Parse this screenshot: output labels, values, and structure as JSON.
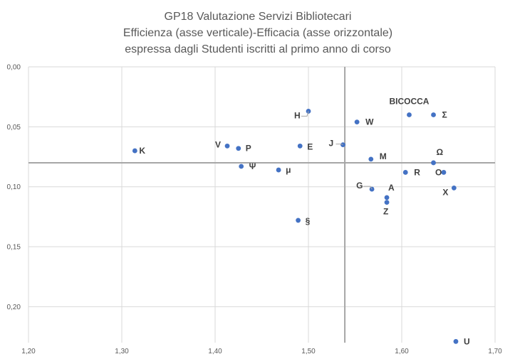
{
  "chart_data": {
    "type": "scatter",
    "title_lines": [
      "GP18 Valutazione Servizi Bibliotecari",
      "Efficienza (asse verticale)-Efficacia (asse orizzontale)",
      "espressa dagli Studenti iscritti al primo anno di corso"
    ],
    "xlim": [
      1.2,
      1.7
    ],
    "ylim": [
      0.0,
      0.23
    ],
    "y_reversed": true,
    "x_ticks": [
      "1,20",
      "1,30",
      "1,40",
      "1,50",
      "1,60",
      "1,70"
    ],
    "y_ticks": [
      "0,00",
      "0,05",
      "0,10",
      "0,15",
      "0,20"
    ],
    "x_tick_values": [
      1.2,
      1.3,
      1.4,
      1.5,
      1.6,
      1.7
    ],
    "y_tick_values": [
      0.0,
      0.05,
      0.1,
      0.15,
      0.2
    ],
    "grid": true,
    "reference_lines": {
      "x": 1.539,
      "y": 0.08
    },
    "marker_color": "#4472C4",
    "points": [
      {
        "label": "BICOCCA",
        "x": 1.608,
        "y": 0.04
      },
      {
        "label": "Σ",
        "x": 1.634,
        "y": 0.04
      },
      {
        "label": "H",
        "x": 1.5,
        "y": 0.037
      },
      {
        "label": "W",
        "x": 1.552,
        "y": 0.046
      },
      {
        "label": "K",
        "x": 1.314,
        "y": 0.07
      },
      {
        "label": "V",
        "x": 1.413,
        "y": 0.066
      },
      {
        "label": "P",
        "x": 1.425,
        "y": 0.068
      },
      {
        "label": "E",
        "x": 1.491,
        "y": 0.066
      },
      {
        "label": "J",
        "x": 1.537,
        "y": 0.065
      },
      {
        "label": "M",
        "x": 1.567,
        "y": 0.077
      },
      {
        "label": "Ω",
        "x": 1.634,
        "y": 0.08
      },
      {
        "label": "Ψ",
        "x": 1.428,
        "y": 0.083
      },
      {
        "label": "μ",
        "x": 1.468,
        "y": 0.086
      },
      {
        "label": "R",
        "x": 1.604,
        "y": 0.088
      },
      {
        "label": "O",
        "x": 1.645,
        "y": 0.088
      },
      {
        "label": "G",
        "x": 1.568,
        "y": 0.102
      },
      {
        "label": "X",
        "x": 1.656,
        "y": 0.101
      },
      {
        "label": "A",
        "x": 1.584,
        "y": 0.109
      },
      {
        "label": "Z",
        "x": 1.584,
        "y": 0.113
      },
      {
        "label": "§",
        "x": 1.489,
        "y": 0.128
      },
      {
        "label": "U",
        "x": 1.658,
        "y": 0.229
      }
    ]
  }
}
